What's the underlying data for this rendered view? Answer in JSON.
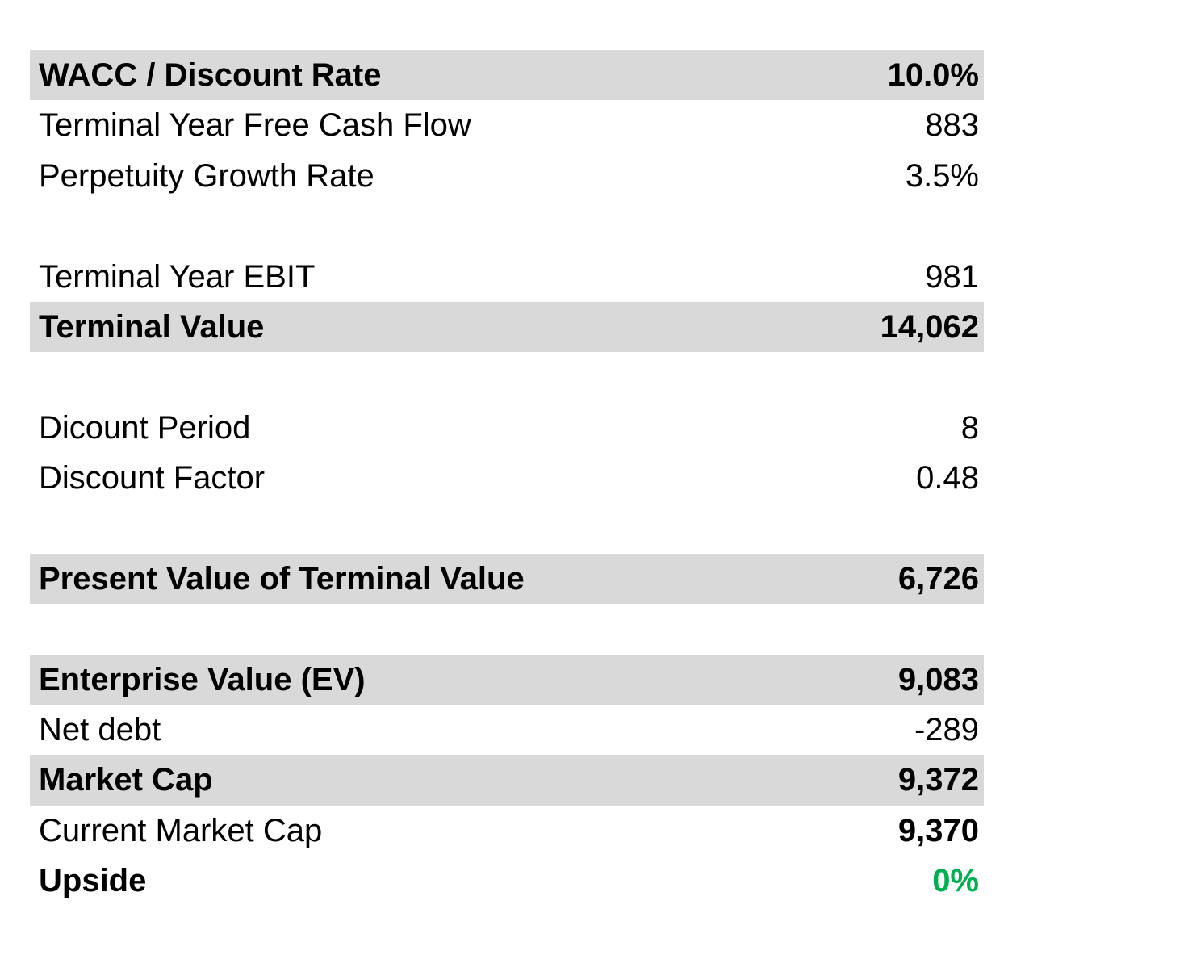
{
  "rows": [
    {
      "label": "WACC / Discount Rate",
      "value": "10.0%"
    },
    {
      "label": "Terminal Year Free Cash Flow",
      "value": "883"
    },
    {
      "label": "Perpetuity Growth Rate",
      "value": "3.5%"
    },
    {
      "label": "Terminal Year EBIT",
      "value": "981"
    },
    {
      "label": "Terminal Value",
      "value": "14,062"
    },
    {
      "label": "Dicount Period",
      "value": "8"
    },
    {
      "label": "Discount Factor",
      "value": "0.48"
    },
    {
      "label": "Present Value of Terminal Value",
      "value": "6,726"
    },
    {
      "label": "Enterprise Value (EV)",
      "value": "9,083"
    },
    {
      "label": "Net debt",
      "value": "-289"
    },
    {
      "label": "Market Cap",
      "value": "9,372"
    },
    {
      "label": "Current Market Cap",
      "value": "9,370"
    },
    {
      "label": "Upside",
      "value": "0%"
    }
  ],
  "colors": {
    "shade": "#d9d9d9",
    "upside": "#00b050"
  }
}
